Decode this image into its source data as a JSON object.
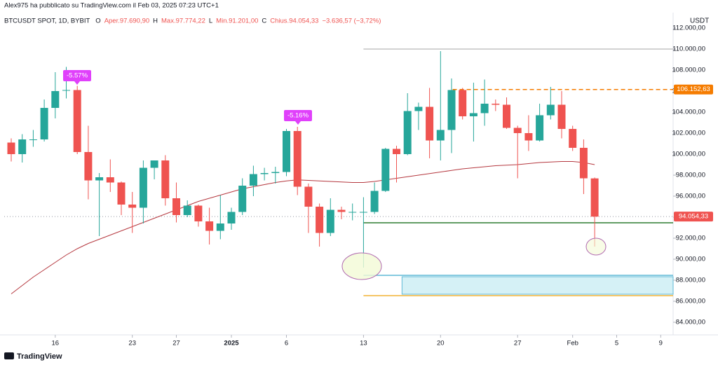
{
  "header": "Alex975 ha pubblicato su TradingView.com il Feb 03, 2025 07:23 UTC+1",
  "footer": "TradingView",
  "chart_data": {
    "type": "candlestick",
    "title": "BTCUSDT SPOT, 1D, BYBIT",
    "legend": [
      "O",
      "Aper.97.690,90",
      "H",
      "Max.97.774,22",
      "L",
      "Min.91.201,00",
      "C",
      "Chius.94.054,33",
      "−3.636,57 (−3,72%)"
    ],
    "y_axis_label": "USDT",
    "up_color": "#26a69a",
    "down_color": "#ef5350",
    "open": [
      101100,
      100000,
      101400,
      101400,
      104400,
      106100,
      106100,
      100200,
      97500,
      97800,
      97300,
      95200,
      94900,
      98700,
      99400,
      95800,
      94200,
      95100,
      93600,
      92700,
      93400,
      94500,
      97000,
      98100,
      98200,
      98300,
      102200,
      96900,
      95000,
      92500,
      94700,
      94500,
      94500,
      94500,
      96500,
      100500,
      100000,
      104100,
      104500,
      101300,
      102300,
      106100,
      103600,
      103900,
      104800,
      104700,
      102500,
      102000,
      101300,
      103700,
      104700,
      102400,
      100600,
      97690.9
    ],
    "high": [
      101500,
      101900,
      102300,
      105200,
      107800,
      108300,
      106500,
      102700,
      98200,
      99500,
      97400,
      96400,
      99400,
      99400,
      99900,
      97300,
      95600,
      95200,
      94900,
      96100,
      94900,
      97700,
      98900,
      98700,
      98800,
      102400,
      102600,
      97200,
      95300,
      95800,
      95000,
      95300,
      95900,
      97300,
      100600,
      100800,
      105800,
      104900,
      106300,
      109800,
      107200,
      106300,
      106800,
      107100,
      105200,
      105400,
      102700,
      103700,
      104800,
      106400,
      106000,
      102700,
      101400,
      97774.22
    ],
    "low": [
      99300,
      99200,
      100700,
      101200,
      103400,
      105300,
      100000,
      95700,
      92200,
      96400,
      94200,
      92500,
      93400,
      97600,
      95100,
      93500,
      94000,
      93100,
      91400,
      91900,
      92800,
      94200,
      96000,
      97500,
      97200,
      97900,
      96100,
      92500,
      91200,
      92200,
      93800,
      93700,
      89200,
      94300,
      96400,
      97300,
      99900,
      102300,
      99600,
      99400,
      100100,
      103300,
      101200,
      102700,
      104100,
      102400,
      97700,
      100300,
      101200,
      103300,
      101500,
      100300,
      96200,
      91201
    ],
    "close": [
      100000,
      101400,
      101400,
      104400,
      106000,
      106100,
      100200,
      97500,
      97800,
      97300,
      95200,
      94900,
      98700,
      99400,
      95800,
      94200,
      95100,
      93600,
      92700,
      93400,
      94500,
      97000,
      98100,
      98200,
      98300,
      102200,
      96900,
      95000,
      92500,
      94700,
      94500,
      94500,
      94500,
      96500,
      100500,
      100000,
      104100,
      104500,
      101300,
      102300,
      106100,
      103600,
      103900,
      104800,
      104700,
      102500,
      102000,
      101300,
      103700,
      104700,
      102400,
      100600,
      97700,
      94054.33
    ],
    "series": [
      {
        "type": "line",
        "color": "#b5383f",
        "values": [
          86700,
          87500,
          88300,
          89000,
          89700,
          90400,
          91000,
          91500,
          91900,
          92300,
          92700,
          93100,
          93500,
          93900,
          94300,
          94700,
          95100,
          95500,
          95800,
          96100,
          96400,
          96700,
          96900,
          97100,
          97300,
          97450,
          97550,
          97500,
          97450,
          97400,
          97350,
          97300,
          97300,
          97400,
          97550,
          97700,
          97850,
          98000,
          98150,
          98300,
          98450,
          98600,
          98700,
          98800,
          98900,
          98950,
          99000,
          99100,
          99200,
          99250,
          99300,
          99300,
          99200,
          99000
        ]
      }
    ],
    "levels": [
      {
        "value": 110000,
        "color": "#c4c4c4"
      },
      {
        "value": 93467,
        "color": "#2e7d32"
      },
      {
        "value": 88467,
        "color": "#5fb8d6"
      },
      {
        "value": 86533,
        "color": "#f2b233"
      }
    ],
    "zone": {
      "top": 88333,
      "bottom": 86667,
      "color": "#d5f1f6"
    },
    "price_labels": [
      {
        "value": 106152.63,
        "label": "106.152,63",
        "color": "#f57c00"
      },
      {
        "value": 94054.33,
        "label": "94.054,33",
        "color": "#ef5350"
      }
    ],
    "annotations": [
      "-5.57%",
      "-5.16%"
    ],
    "ylim": [
      82800,
      113467
    ],
    "yticks": [
      {
        "value": 84000,
        "label": "84.000,00"
      },
      {
        "value": 86000,
        "label": "86.000,00"
      },
      {
        "value": 88000,
        "label": "88.000,00"
      },
      {
        "value": 90000,
        "label": "90.000,00"
      },
      {
        "value": 92000,
        "label": "92.000,00"
      },
      {
        "value": 94000,
        "label": "94.000,00"
      },
      {
        "value": 96000,
        "label": "96.000,00"
      },
      {
        "value": 98000,
        "label": "98.000,00"
      },
      {
        "value": 100000,
        "label": "100.000,00"
      },
      {
        "value": 102000,
        "label": "102.000,00"
      },
      {
        "value": 104000,
        "label": "104.000,00"
      },
      {
        "value": 106000,
        "label": "106.000,00"
      },
      {
        "value": 108000,
        "label": "108.000,00"
      },
      {
        "value": 110000,
        "label": "110.000,00"
      },
      {
        "value": 112000,
        "label": "112.000,00"
      }
    ],
    "xlim": [
      -0.637,
      60.127
    ],
    "xticks": [
      {
        "value": 4,
        "label": "16"
      },
      {
        "value": 11,
        "label": "23"
      },
      {
        "value": 15,
        "label": "27"
      },
      {
        "value": 20,
        "label": "2025"
      },
      {
        "value": 25,
        "label": "6"
      },
      {
        "value": 32,
        "label": "13"
      },
      {
        "value": 39,
        "label": "20"
      },
      {
        "value": 46,
        "label": "27"
      },
      {
        "value": 51,
        "label": "Feb"
      },
      {
        "value": 55,
        "label": "5"
      },
      {
        "value": 59,
        "label": "9"
      }
    ]
  }
}
